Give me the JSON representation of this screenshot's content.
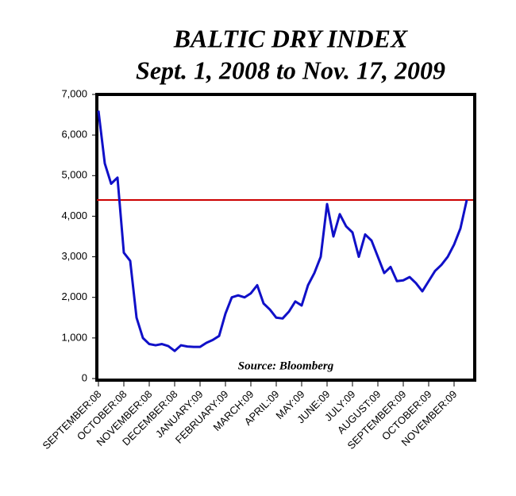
{
  "chart_data": {
    "type": "line",
    "title": "BALTIC DRY INDEX",
    "subtitle": "Sept. 1, 2008 to Nov. 17, 2009",
    "annotation": "Source: Bloomberg",
    "categories": [
      "SEPTEMBER:08",
      null,
      null,
      null,
      "OCTOBER:08",
      null,
      null,
      null,
      "NOVEMBER:08",
      null,
      null,
      null,
      "DECEMBER:08",
      null,
      null,
      null,
      "JANUARY:09",
      null,
      null,
      null,
      "FEBRUARY:09",
      null,
      null,
      null,
      "MARCH:09",
      null,
      null,
      null,
      "APRIL:09",
      null,
      null,
      null,
      "MAY:09",
      null,
      null,
      null,
      "JUNE:09",
      null,
      null,
      null,
      "JULY:09",
      null,
      null,
      null,
      "AUGUST:09",
      null,
      null,
      null,
      "SEPTEMBER:09",
      null,
      null,
      null,
      "OCTOBER:09",
      null,
      null,
      null,
      "NOVEMBER:09",
      null,
      null
    ],
    "values": [
      6600,
      5300,
      4800,
      4950,
      3100,
      2900,
      1500,
      1000,
      850,
      820,
      850,
      800,
      680,
      820,
      790,
      780,
      780,
      880,
      950,
      1050,
      1600,
      2000,
      2050,
      2000,
      2100,
      2300,
      1850,
      1700,
      1500,
      1480,
      1650,
      1900,
      1800,
      2300,
      2600,
      3000,
      4300,
      3500,
      4050,
      3750,
      3600,
      3000,
      3550,
      3400,
      3000,
      2600,
      2750,
      2400,
      2420,
      2500,
      2350,
      2150,
      2400,
      2650,
      2800,
      3000,
      3300,
      3700,
      4400
    ],
    "color": "#1010c8",
    "reference_line": {
      "value": 4400,
      "color": "#cc0000"
    },
    "ylim": [
      0,
      7000
    ],
    "yticks": [
      0,
      {
        "value": 1000,
        "label": "1,000"
      },
      {
        "value": 2000,
        "label": "2,000"
      },
      {
        "value": 3000,
        "label": "3,000"
      },
      {
        "value": 4000,
        "label": "4,000"
      },
      {
        "value": 5000,
        "label": "5,000"
      },
      {
        "value": 6000,
        "label": "6,000"
      },
      {
        "value": 7000,
        "label": "7,000"
      }
    ],
    "grid": false
  }
}
